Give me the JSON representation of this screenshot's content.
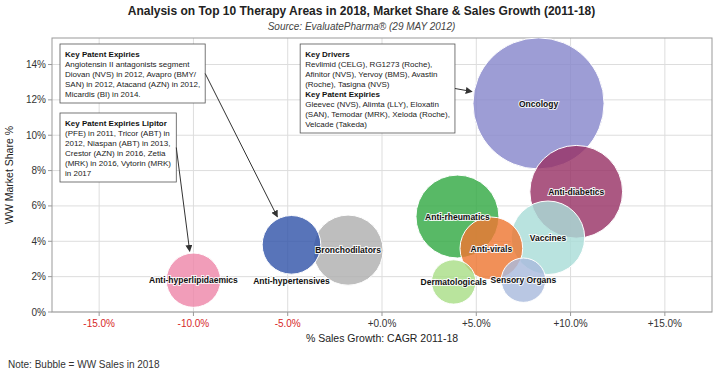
{
  "chart_data": {
    "type": "bubble",
    "title": "Analysis on Top 10 Therapy Areas in 2018, Market Share & Sales Growth (2011-18)",
    "subtitle": "Source: EvaluatePharma® (29 MAY 2012)",
    "x_label": "% Sales Growth: CAGR 2011-18",
    "y_label": "WW Market Share %",
    "note": "Note: Bubble = WW Sales in 2018",
    "xlim": [
      -0.175,
      0.175
    ],
    "ylim": [
      0.0,
      0.155
    ],
    "xticks": [
      {
        "value": -0.15,
        "label": "-15.0%"
      },
      {
        "value": -0.1,
        "label": "-10.0%"
      },
      {
        "value": -0.05,
        "label": "-5.0%"
      },
      {
        "value": 0.0,
        "label": "+0.0%"
      },
      {
        "value": 0.05,
        "label": "+5.0%"
      },
      {
        "value": 0.1,
        "label": "+10.0%"
      },
      {
        "value": 0.15,
        "label": "+15.0%"
      }
    ],
    "yticks": [
      {
        "value": 0.0,
        "label": "0%"
      },
      {
        "value": 0.02,
        "label": "2%"
      },
      {
        "value": 0.04,
        "label": "4%"
      },
      {
        "value": 0.06,
        "label": "6%"
      },
      {
        "value": 0.08,
        "label": "8%"
      },
      {
        "value": 0.1,
        "label": "10%"
      },
      {
        "value": 0.12,
        "label": "12%"
      },
      {
        "value": 0.14,
        "label": "14%"
      }
    ],
    "grid": true,
    "series": [
      {
        "name": "Oncology",
        "color": "#8888cc",
        "x": [
          0.083
        ],
        "values": [
          0.118
        ],
        "sizes": [
          7000
        ],
        "annotation": [
          {
            "heading": "Key Drivers",
            "text": "Revlimid (CELG), RG1273 (Roche),\nAfinitor (NVS), Yervoy (BMS), Avastin\n(Roche), Tasigna (NVS)"
          },
          {
            "heading": "Key Patent Expiries",
            "text": "Gleevec (NVS), Alimta (LLY), Eloxatin\n(SAN), Temodar (MRK), Xeloda (Roche),\nVelcade (Takeda)"
          }
        ]
      },
      {
        "name": "Anti-diabetics",
        "color": "#993366",
        "x": [
          0.103
        ],
        "values": [
          0.068
        ],
        "sizes": [
          3500
        ]
      },
      {
        "name": "Anti-rheumatics",
        "color": "#33aa44",
        "x": [
          0.04
        ],
        "values": [
          0.054
        ],
        "sizes": [
          2800
        ]
      },
      {
        "name": "Anti-virals",
        "color": "#ee7733",
        "x": [
          0.058
        ],
        "values": [
          0.036
        ],
        "sizes": [
          1600
        ]
      },
      {
        "name": "Vaccines",
        "color": "#aaddd8",
        "x": [
          0.088
        ],
        "values": [
          0.042
        ],
        "sizes": [
          2200
        ]
      },
      {
        "name": "Bronchodilators",
        "color": "#b0b0b0",
        "x": [
          -0.018
        ],
        "values": [
          0.035
        ],
        "sizes": [
          2000
        ]
      },
      {
        "name": "Anti-hypertensives",
        "color": "#3355aa",
        "x": [
          -0.048
        ],
        "values": [
          0.038
        ],
        "sizes": [
          1400
        ],
        "annotation": [
          {
            "heading": "Key Patent Expiries",
            "text": "Angiotensin II antagonists segment\nDiovan (NVS) in 2012, Avapro (BMY/\nSAN) in 2012, Atacand (AZN) in 2012,\nMicardis (BI) in 2014."
          }
        ]
      },
      {
        "name": "Anti-hyperlipidaemics",
        "color": "#ee88aa",
        "x": [
          -0.1
        ],
        "values": [
          0.018
        ],
        "sizes": [
          1200
        ],
        "annotation": [
          {
            "heading": "Key Patent Expiries Lipitor",
            "text": "(PFE) in 2011, Tricor (ABT) in\n2012, Niaspan (ABT) in 2013,\nCrestor (AZN) in 2016, Zetia\n(MRK) in 2016, Vytorin (MRK)\nin 2017"
          }
        ]
      },
      {
        "name": "Dermatologicals",
        "color": "#aade88",
        "x": [
          0.038
        ],
        "values": [
          0.017
        ],
        "sizes": [
          800
        ]
      },
      {
        "name": "Sensory Organs",
        "color": "#aabbdd",
        "x": [
          0.075
        ],
        "values": [
          0.018
        ],
        "sizes": [
          800
        ]
      }
    ]
  }
}
